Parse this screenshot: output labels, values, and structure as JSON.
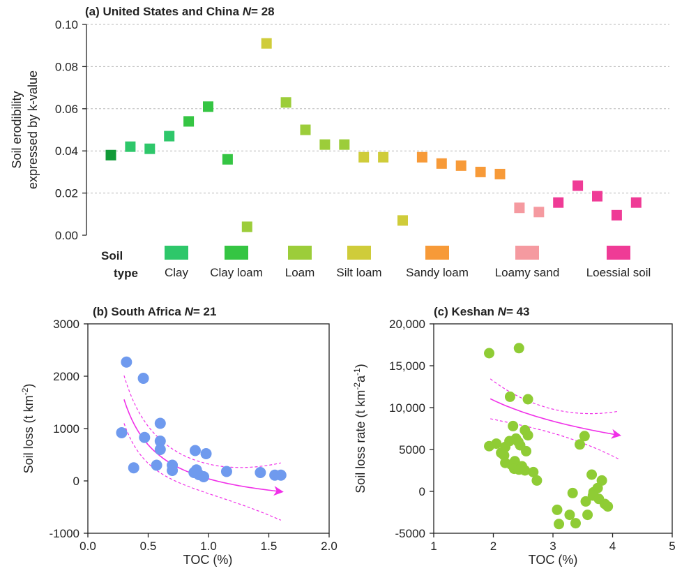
{
  "chart_data": [
    {
      "panel": "a",
      "type": "scatter",
      "title": "(a) United States and China",
      "n_label": "N",
      "n_value": "= 28",
      "ylabel_line1": "Soil erodibility",
      "ylabel_line2": "expressed by k-value",
      "ylim": [
        0,
        0.1
      ],
      "yticks": [
        "0.00",
        "0.02",
        "0.04",
        "0.06",
        "0.08",
        "0.10"
      ],
      "ytick_values": [
        0,
        0.02,
        0.04,
        0.06,
        0.08,
        0.1
      ],
      "grid": "horizontal dashed",
      "legend_title_line1": "Soil",
      "legend_title_line2": "type",
      "soil_types": [
        {
          "name": "Clay",
          "color": "#2ec76a"
        },
        {
          "name": "Clay loam",
          "color": "#35c543"
        },
        {
          "name": "Loam",
          "color": "#9ccd3a"
        },
        {
          "name": "Silt loam",
          "color": "#cfcc3a"
        },
        {
          "name": "Sandy loam",
          "color": "#f79a38"
        },
        {
          "name": "Loamy sand",
          "color": "#f59aa0"
        },
        {
          "name": "Loessial soil",
          "color": "#ef3b96"
        }
      ],
      "values": [
        0.038,
        0.042,
        0.041,
        0.047,
        0.054,
        0.061,
        0.036,
        0.004,
        0.091,
        0.063,
        0.05,
        0.043,
        0.043,
        0.037,
        0.037,
        0.007,
        0.037,
        0.034,
        0.033,
        0.03,
        0.029,
        0.013,
        0.011,
        0.0155,
        0.0235,
        0.0185,
        0.0095,
        0.0155
      ],
      "colors": [
        "#119a38",
        "#2ec76a",
        "#2ec76a",
        "#2ec76a",
        "#35c543",
        "#35c543",
        "#35c543",
        "#9ccd3a",
        "#cfcc3a",
        "#9ccd3a",
        "#9ccd3a",
        "#9ccd3a",
        "#9ccd3a",
        "#cfcc3a",
        "#cfcc3a",
        "#cfcc3a",
        "#f79a38",
        "#f79a38",
        "#f79a38",
        "#f79a38",
        "#f79a38",
        "#f59aa0",
        "#f59aa0",
        "#ef3b96",
        "#ef3b96",
        "#ef3b96",
        "#ef3b96",
        "#ef3b96"
      ]
    },
    {
      "panel": "b",
      "type": "scatter",
      "title": "(b) South Africa",
      "n_label": "N",
      "n_value": "= 21",
      "xlabel": "TOC (%)",
      "ylabel": "Soil loss (t km",
      "ylabel_sup": "-2",
      "ylabel_end": ")",
      "xlim": [
        0,
        2.0
      ],
      "ylim": [
        -1000,
        3000
      ],
      "xticks": [
        "0.0",
        "0.5",
        "1.0",
        "1.5",
        "2.0"
      ],
      "xtick_values": [
        0,
        0.5,
        1.0,
        1.5,
        2.0
      ],
      "yticks": [
        "-1000",
        "0",
        "1000",
        "2000",
        "3000"
      ],
      "ytick_values": [
        -1000,
        0,
        1000,
        2000,
        3000
      ],
      "point_color": "#6f9aee",
      "fit_color": "#f030e8",
      "x": [
        0.32,
        0.46,
        0.28,
        0.47,
        0.6,
        0.6,
        0.6,
        0.38,
        0.57,
        0.89,
        0.7,
        0.7,
        0.9,
        0.88,
        0.92,
        0.96,
        0.98,
        1.15,
        1.43,
        1.55,
        1.6
      ],
      "y": [
        2270,
        1960,
        920,
        830,
        1100,
        760,
        600,
        250,
        300,
        580,
        300,
        200,
        210,
        160,
        120,
        80,
        520,
        180,
        160,
        110,
        110
      ],
      "fit": {
        "a": 650,
        "b": 1.0,
        "c": -610,
        "ci": 500,
        "x_start": 0.3,
        "x_end": 1.6
      }
    },
    {
      "panel": "c",
      "type": "scatter",
      "title": "(c) Keshan",
      "n_label": "N",
      "n_value": "= 43",
      "xlabel": "TOC (%)",
      "ylabel": "Soil loss rate (t km",
      "ylabel_sup1": "-2",
      "ylabel_mid": "a",
      "ylabel_sup2": "-1",
      "ylabel_end": ")",
      "xlim": [
        1,
        5
      ],
      "ylim": [
        -5000,
        20000
      ],
      "xticks": [
        "1",
        "2",
        "3",
        "4",
        "5"
      ],
      "xtick_values": [
        1,
        2,
        3,
        4,
        5
      ],
      "yticks": [
        "-5000",
        "0",
        "5000",
        "10,000",
        "15,000",
        "20,000"
      ],
      "ytick_values": [
        -5000,
        0,
        5000,
        10000,
        15000,
        20000
      ],
      "point_color": "#8fcc35",
      "fit_color": "#f030e8",
      "x": [
        1.93,
        2.43,
        1.93,
        2.28,
        2.58,
        2.05,
        2.33,
        2.53,
        2.38,
        2.58,
        2.2,
        2.45,
        2.13,
        2.55,
        2.18,
        2.27,
        2.42,
        2.36,
        2.48,
        2.2,
        2.3,
        2.35,
        2.67,
        2.43,
        2.53,
        2.73,
        3.53,
        3.45,
        3.33,
        3.65,
        3.68,
        3.82,
        3.75,
        3.55,
        3.67,
        3.77,
        3.87,
        3.58,
        3.92,
        3.07,
        3.28,
        3.1,
        3.38
      ],
      "y": [
        16500,
        17100,
        5400,
        11300,
        11000,
        5700,
        7800,
        7300,
        6300,
        6700,
        5300,
        5500,
        4600,
        4800,
        4300,
        6000,
        5900,
        3600,
        3000,
        3400,
        3200,
        2700,
        2300,
        2600,
        2500,
        1300,
        6600,
        5600,
        -200,
        2000,
        -100,
        1300,
        400,
        -1200,
        -500,
        -900,
        -1500,
        -2800,
        -1800,
        -2200,
        -2800,
        -3900,
        -3800
      ],
      "fit": {
        "a": 21700,
        "b": 0.41,
        "c": -5450,
        "ci": 2600,
        "x_start": 1.95,
        "x_end": 4.1
      }
    }
  ]
}
